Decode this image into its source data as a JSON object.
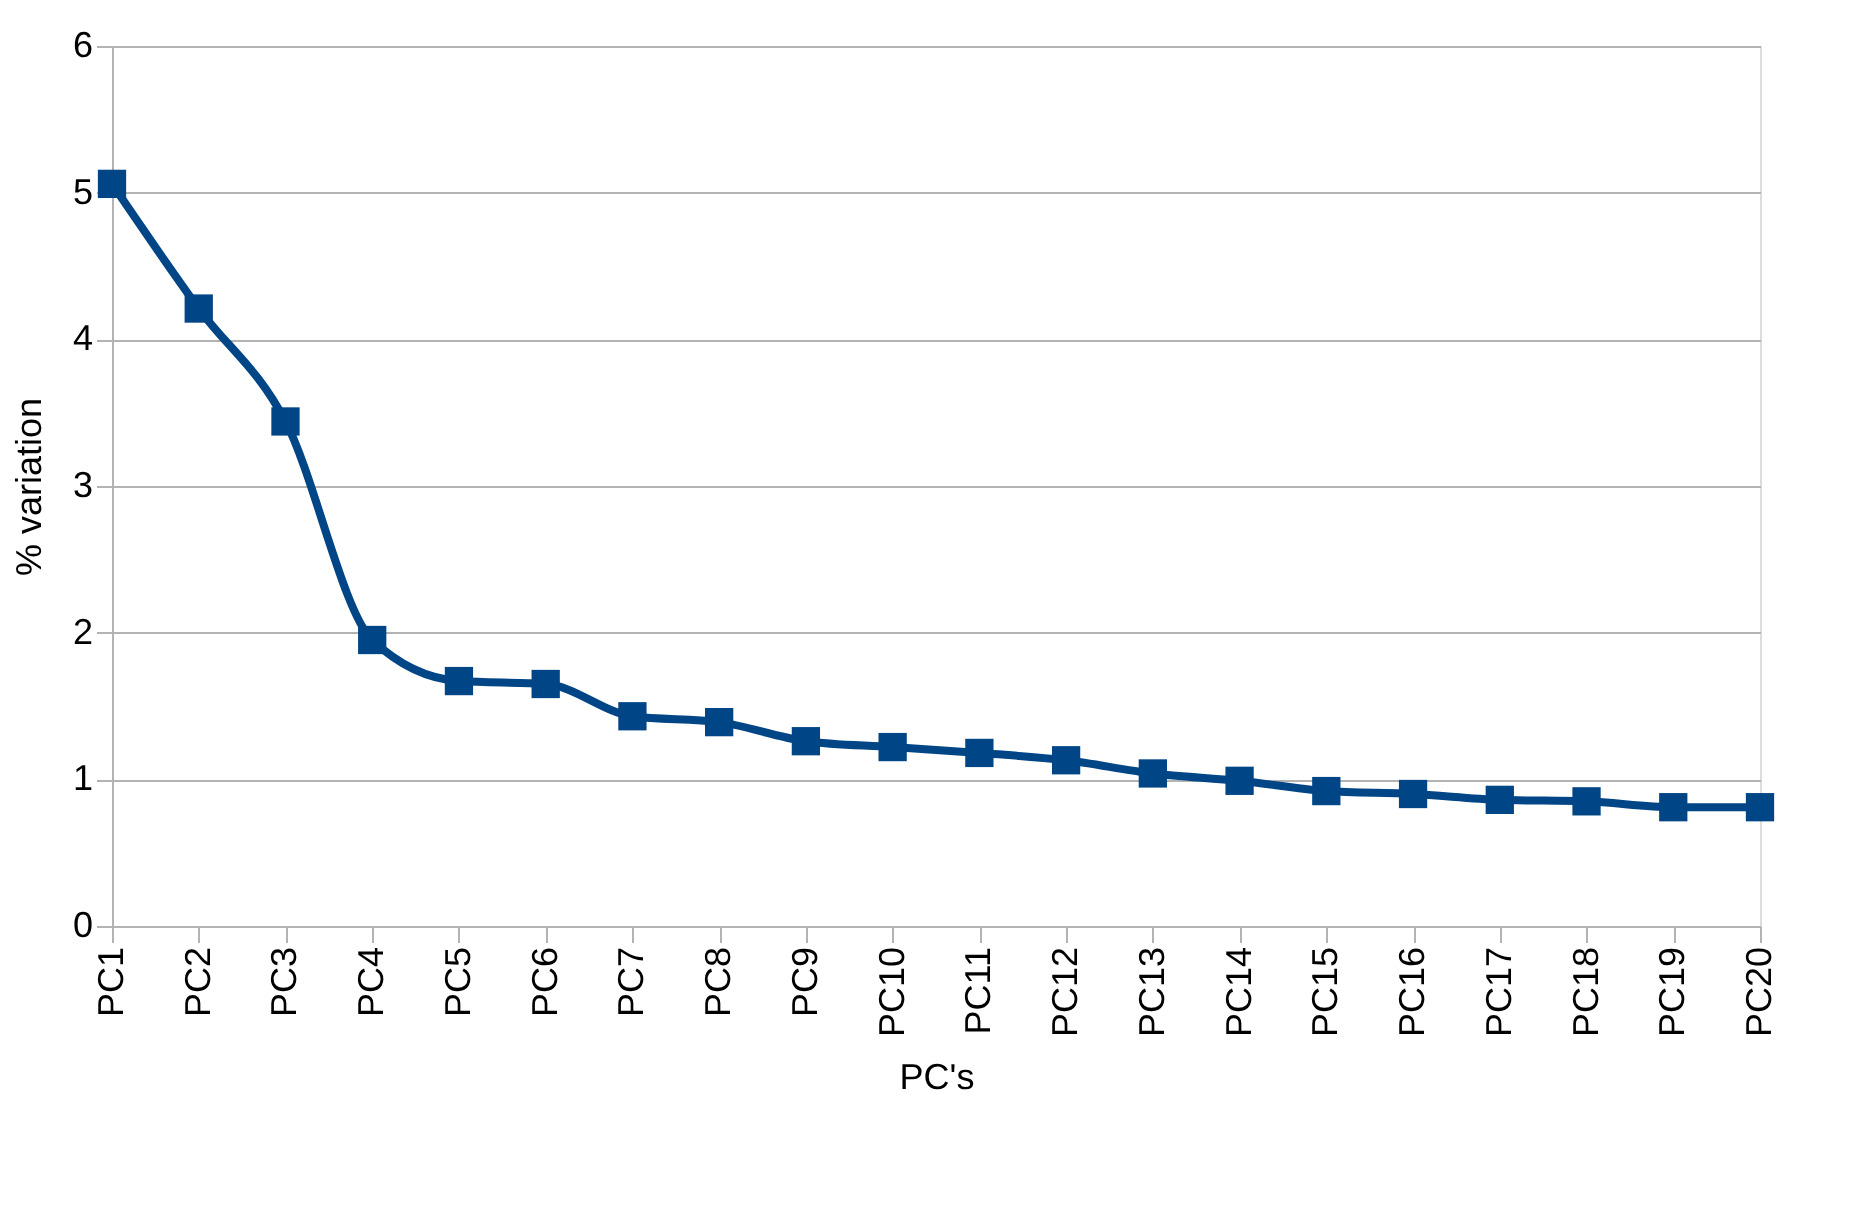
{
  "chart_data": {
    "type": "line",
    "xlabel": "PC's",
    "ylabel": "% variation",
    "categories": [
      "PC1",
      "PC2",
      "PC3",
      "PC4",
      "PC5",
      "PC6",
      "PC7",
      "PC8",
      "PC9",
      "PC10",
      "PC11",
      "PC12",
      "PC13",
      "PC14",
      "PC15",
      "PC16",
      "PC17",
      "PC18",
      "PC19",
      "PC20"
    ],
    "series": [
      {
        "color": "#004586",
        "values": [
          5.06,
          4.21,
          3.44,
          1.95,
          1.67,
          1.65,
          1.43,
          1.39,
          1.26,
          1.22,
          1.18,
          1.13,
          1.04,
          0.99,
          0.92,
          0.9,
          0.86,
          0.85,
          0.81,
          0.81
        ]
      }
    ],
    "ylim": [
      0,
      6
    ],
    "yticks": [
      0,
      1,
      2,
      3,
      4,
      5,
      6
    ],
    "grid": "y",
    "marker": "square",
    "line_style": "solid",
    "legend": false
  }
}
